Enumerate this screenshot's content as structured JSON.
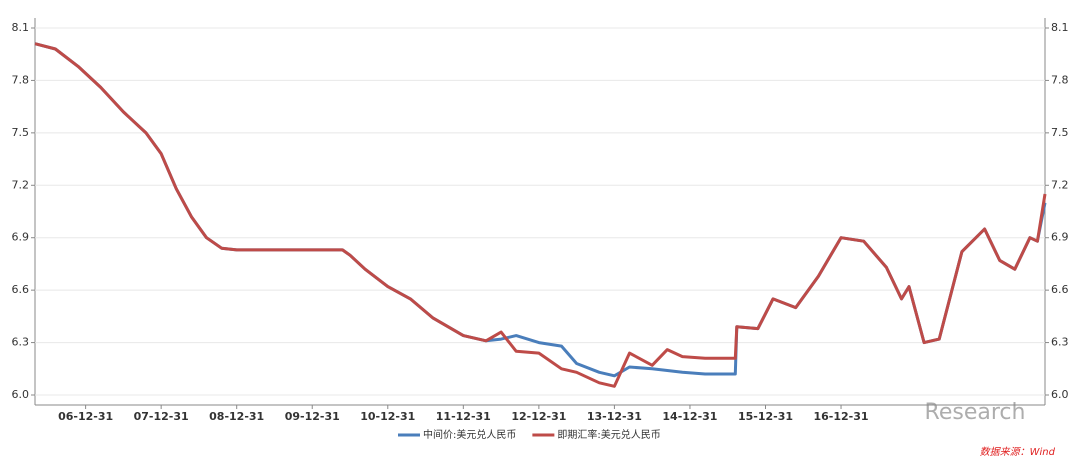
{
  "chart_data": {
    "type": "line",
    "x": [
      2006.33,
      2006.6,
      2006.9,
      2007.2,
      2007.5,
      2007.8,
      2008.0,
      2008.2,
      2008.4,
      2008.6,
      2008.8,
      2009.0,
      2010.0,
      2010.4,
      2010.5,
      2010.7,
      2011.0,
      2011.3,
      2011.6,
      2012.0,
      2012.3,
      2012.5,
      2012.7,
      2013.0,
      2013.3,
      2013.5,
      2013.8,
      2014.0,
      2014.2,
      2014.5,
      2014.7,
      2014.9,
      2015.2,
      2015.6,
      2015.62,
      2015.9,
      2016.1,
      2016.4,
      2016.7,
      2017.0,
      2017.3,
      2017.6,
      2017.8,
      2017.9,
      2018.1,
      2018.3,
      2018.6,
      2018.9,
      2019.1,
      2019.3,
      2019.5,
      2019.6,
      2019.7
    ],
    "series": [
      {
        "name": "中间价:美元兑人民币",
        "color": "#4a7ebb",
        "values": [
          8.01,
          7.98,
          7.88,
          7.76,
          7.62,
          7.5,
          7.38,
          7.18,
          7.02,
          6.9,
          6.84,
          6.83,
          6.83,
          6.83,
          6.8,
          6.72,
          6.62,
          6.55,
          6.44,
          6.34,
          6.31,
          6.32,
          6.34,
          6.3,
          6.28,
          6.18,
          6.13,
          6.11,
          6.16,
          6.15,
          6.14,
          6.13,
          6.12,
          6.12,
          6.39,
          6.38,
          6.55,
          6.5,
          6.68,
          6.9,
          6.88,
          6.73,
          6.55,
          6.62,
          6.3,
          6.32,
          6.82,
          6.95,
          6.77,
          6.72,
          6.9,
          6.88,
          7.1
        ]
      },
      {
        "name": "即期汇率:美元兑人民币",
        "color": "#be4b48",
        "values": [
          8.01,
          7.98,
          7.88,
          7.76,
          7.62,
          7.5,
          7.38,
          7.18,
          7.02,
          6.9,
          6.84,
          6.83,
          6.83,
          6.83,
          6.8,
          6.72,
          6.62,
          6.55,
          6.44,
          6.34,
          6.31,
          6.36,
          6.25,
          6.24,
          6.15,
          6.13,
          6.07,
          6.05,
          6.24,
          6.17,
          6.26,
          6.22,
          6.21,
          6.21,
          6.39,
          6.38,
          6.55,
          6.5,
          6.68,
          6.9,
          6.88,
          6.73,
          6.55,
          6.62,
          6.3,
          6.32,
          6.82,
          6.95,
          6.77,
          6.72,
          6.9,
          6.88,
          7.15
        ]
      }
    ],
    "xlim": [
      2006.33,
      2019.7
    ],
    "xticks": [
      {
        "value": 2007.0,
        "label": "06-12-31"
      },
      {
        "value": 2008.0,
        "label": "07-12-31"
      },
      {
        "value": 2009.0,
        "label": "08-12-31"
      },
      {
        "value": 2010.0,
        "label": "09-12-31"
      },
      {
        "value": 2011.0,
        "label": "10-12-31"
      },
      {
        "value": 2012.0,
        "label": "11-12-31"
      },
      {
        "value": 2013.0,
        "label": "12-12-31"
      },
      {
        "value": 2014.0,
        "label": "13-12-31"
      },
      {
        "value": 2015.0,
        "label": "14-12-31"
      },
      {
        "value": 2016.0,
        "label": "15-12-31"
      },
      {
        "value": 2017.0,
        "label": "16-12-31"
      }
    ],
    "ylim": [
      6,
      8.1
    ],
    "yticks": [
      {
        "value": 6,
        "label": "6.0"
      },
      6.3,
      6.6,
      6.9,
      7.2,
      7.5,
      7.8,
      8.1
    ],
    "y2lim": [
      6,
      8.1
    ],
    "y2ticks": [
      {
        "value": 6,
        "label": "6.0"
      },
      6.3,
      6.6,
      6.9,
      7.2,
      7.5,
      7.8,
      8.1
    ],
    "grid": true,
    "watermark": "Research",
    "source": "数据来源：Wind"
  }
}
